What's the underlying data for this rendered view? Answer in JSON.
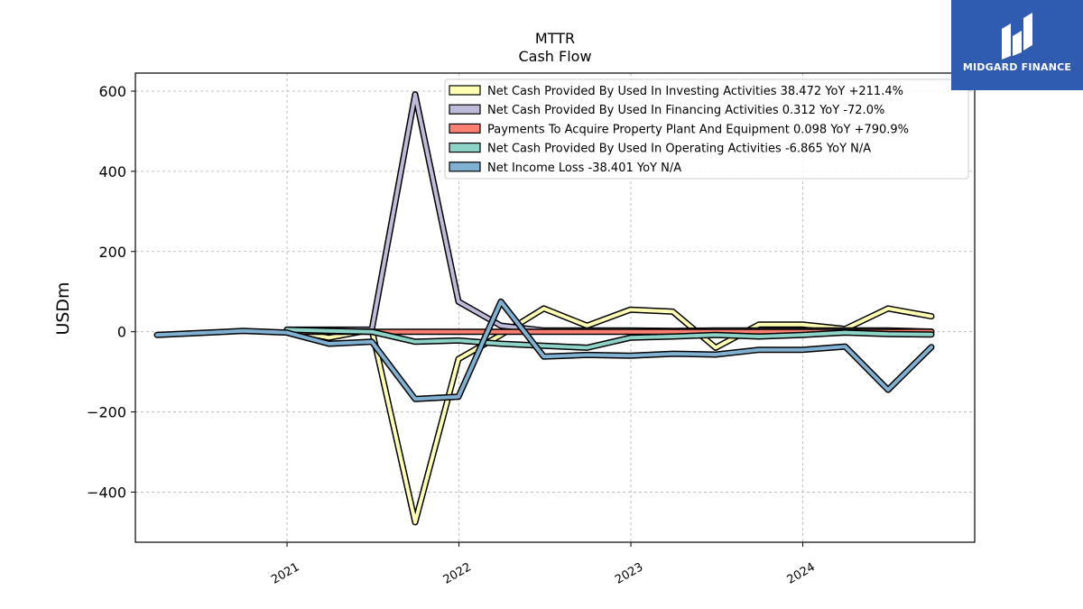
{
  "brand": {
    "name": "MIDGARD FINANCE",
    "bg": "#2f5bb0"
  },
  "chart_data": {
    "type": "line",
    "title": "MTTR",
    "subtitle": "Cash Flow",
    "xlabel": "",
    "ylabel": "USDm",
    "xlim": [
      "2020-02-14",
      "2024-12-31"
    ],
    "ylim": [
      -525,
      645
    ],
    "yticks": [
      600,
      400,
      200,
      0,
      -200,
      -400
    ],
    "ytick_labels": [
      "600",
      "400",
      "200",
      "0",
      "−200",
      "−400"
    ],
    "xticks": [
      "2021-01-01",
      "2022-01-01",
      "2023-01-01",
      "2024-01-01"
    ],
    "xtick_labels": [
      "2021",
      "2022",
      "2023",
      "2024"
    ],
    "grid": true,
    "legend_position": "top-right",
    "series": [
      {
        "name": "Net Cash Provided By Used In Investing Activities  38.472 YoY +211.4%",
        "color": "#ffffb3",
        "points": [
          [
            "2021-01-01",
            5
          ],
          [
            "2021-03-31",
            -15
          ],
          [
            "2021-06-30",
            5
          ],
          [
            "2021-09-30",
            -475
          ],
          [
            "2021-12-31",
            -68
          ],
          [
            "2022-03-31",
            -8
          ],
          [
            "2022-06-30",
            58
          ],
          [
            "2022-09-30",
            15
          ],
          [
            "2022-12-31",
            55
          ],
          [
            "2023-03-31",
            50
          ],
          [
            "2023-06-30",
            -40
          ],
          [
            "2023-09-30",
            18
          ],
          [
            "2023-12-31",
            18
          ],
          [
            "2024-03-31",
            7
          ],
          [
            "2024-06-30",
            58
          ],
          [
            "2024-09-30",
            38.472
          ]
        ]
      },
      {
        "name": "Net Cash Provided By Used In Financing Activities  0.312 YoY -72.0%",
        "color": "#bebada",
        "points": [
          [
            "2021-01-01",
            5
          ],
          [
            "2021-03-31",
            5
          ],
          [
            "2021-06-30",
            5
          ],
          [
            "2021-09-30",
            592
          ],
          [
            "2021-12-31",
            75
          ],
          [
            "2022-03-31",
            15
          ],
          [
            "2022-06-30",
            3
          ],
          [
            "2022-09-30",
            3
          ],
          [
            "2022-12-31",
            3
          ],
          [
            "2023-03-31",
            2
          ],
          [
            "2023-06-30",
            3
          ],
          [
            "2023-09-30",
            3
          ],
          [
            "2023-12-31",
            3
          ],
          [
            "2024-03-31",
            3
          ],
          [
            "2024-06-30",
            3
          ],
          [
            "2024-09-30",
            0.312
          ]
        ]
      },
      {
        "name": "Payments To Acquire Property Plant And Equipment  0.098 YoY +790.9%",
        "color": "#fb8072",
        "points": [
          [
            "2021-01-01",
            0
          ],
          [
            "2021-03-31",
            0
          ],
          [
            "2021-06-30",
            0
          ],
          [
            "2021-09-30",
            0
          ],
          [
            "2021-12-31",
            0
          ],
          [
            "2022-03-31",
            0
          ],
          [
            "2022-06-30",
            0
          ],
          [
            "2022-09-30",
            0
          ],
          [
            "2022-12-31",
            0
          ],
          [
            "2023-03-31",
            0
          ],
          [
            "2023-06-30",
            0
          ],
          [
            "2023-09-30",
            0
          ],
          [
            "2023-12-31",
            0
          ],
          [
            "2024-03-31",
            0
          ],
          [
            "2024-06-30",
            0
          ],
          [
            "2024-09-30",
            0.098
          ]
        ]
      },
      {
        "name": "Net Cash Provided By Used In Operating Activities  -6.865 YoY N/A",
        "color": "#8dd3c7",
        "points": [
          [
            "2021-01-01",
            5
          ],
          [
            "2021-03-31",
            2
          ],
          [
            "2021-06-30",
            0
          ],
          [
            "2021-09-30",
            -25
          ],
          [
            "2021-12-31",
            -22
          ],
          [
            "2022-03-31",
            -30
          ],
          [
            "2022-06-30",
            -35
          ],
          [
            "2022-09-30",
            -40
          ],
          [
            "2022-12-31",
            -15
          ],
          [
            "2023-03-31",
            -12
          ],
          [
            "2023-06-30",
            -8
          ],
          [
            "2023-09-30",
            -12
          ],
          [
            "2023-12-31",
            -8
          ],
          [
            "2024-03-31",
            -2
          ],
          [
            "2024-06-30",
            -6
          ],
          [
            "2024-09-30",
            -6.865
          ]
        ]
      },
      {
        "name": "Net Income Loss  -38.401 YoY N/A",
        "color": "#80b1d3",
        "points": [
          [
            "2020-03-31",
            -8
          ],
          [
            "2020-09-30",
            2
          ],
          [
            "2020-12-31",
            -2
          ],
          [
            "2021-03-31",
            -30
          ],
          [
            "2021-06-30",
            -25
          ],
          [
            "2021-09-30",
            -168
          ],
          [
            "2021-12-31",
            -162
          ],
          [
            "2022-03-31",
            75
          ],
          [
            "2022-06-30",
            -62
          ],
          [
            "2022-09-30",
            -58
          ],
          [
            "2022-12-31",
            -60
          ],
          [
            "2023-03-31",
            -55
          ],
          [
            "2023-06-30",
            -57
          ],
          [
            "2023-09-30",
            -45
          ],
          [
            "2023-12-31",
            -45
          ],
          [
            "2024-03-31",
            -37
          ],
          [
            "2024-06-30",
            -145
          ],
          [
            "2024-09-30",
            -38.401
          ]
        ]
      }
    ]
  }
}
